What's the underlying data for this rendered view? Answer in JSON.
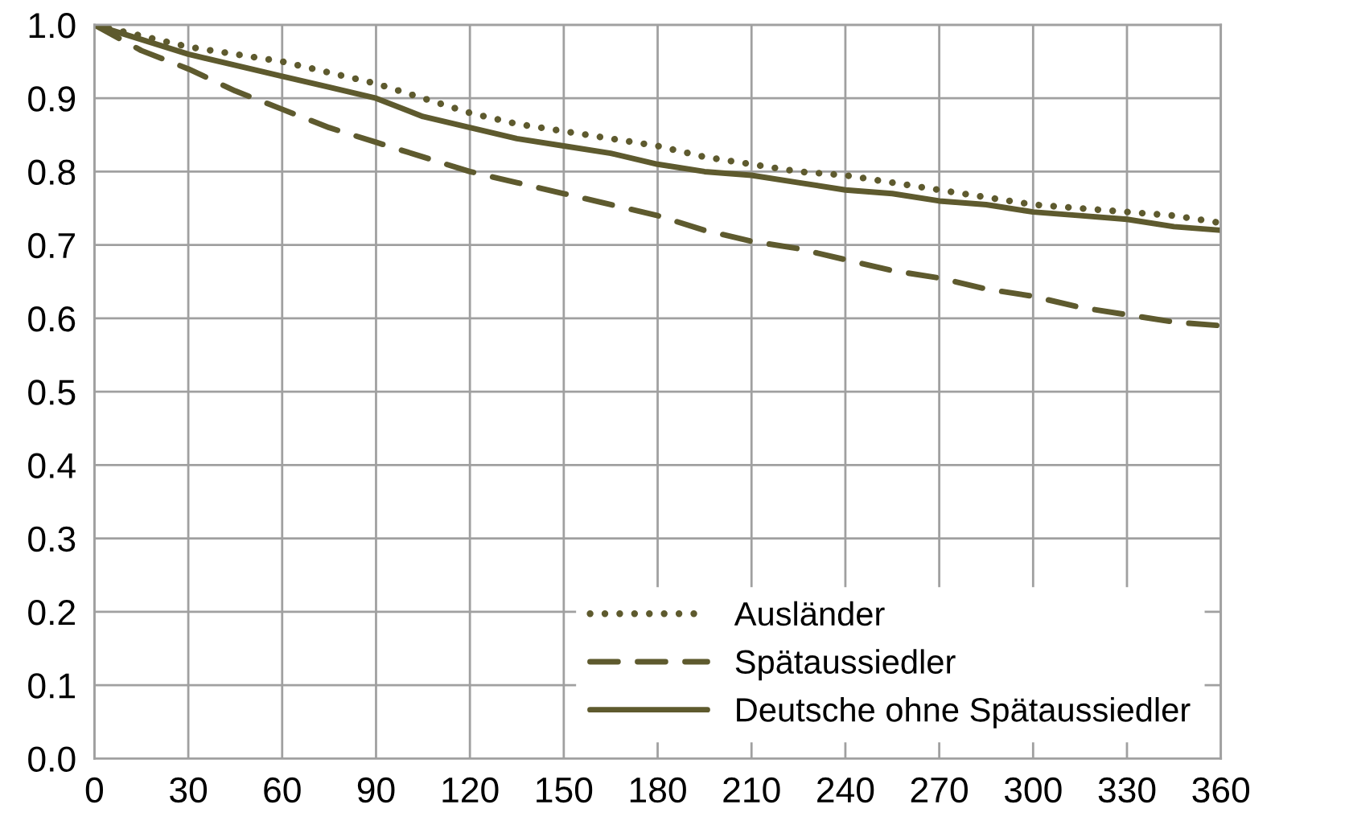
{
  "chart_data": {
    "type": "line",
    "x": [
      0,
      15,
      30,
      45,
      60,
      75,
      90,
      105,
      120,
      135,
      150,
      165,
      180,
      195,
      210,
      225,
      240,
      255,
      270,
      285,
      300,
      315,
      330,
      345,
      360
    ],
    "xlim": [
      0,
      360
    ],
    "xticks": [
      0,
      30,
      60,
      90,
      120,
      150,
      180,
      210,
      240,
      270,
      300,
      330,
      360
    ],
    "ylim": [
      0,
      1
    ],
    "yticks": [
      {
        "value": 0,
        "label": "0.0"
      },
      0.1,
      0.2,
      0.3,
      0.4,
      0.5,
      0.6,
      0.7,
      0.8,
      0.9,
      {
        "value": 1,
        "label": "1.0"
      }
    ],
    "grid": true,
    "legend": "bottom right",
    "marker": "none",
    "series": [
      {
        "name": "Ausländer",
        "color": "#5e5a2e",
        "line_style": "dotted",
        "values": [
          1.0,
          0.985,
          0.97,
          0.96,
          0.95,
          0.935,
          0.92,
          0.9,
          0.88,
          0.865,
          0.855,
          0.845,
          0.835,
          0.82,
          0.81,
          0.8,
          0.795,
          0.785,
          0.775,
          0.765,
          0.755,
          0.75,
          0.745,
          0.74,
          0.73
        ]
      },
      {
        "name": "Spätaussiedler",
        "color": "#5e5a2e",
        "line_style": "dashed",
        "values": [
          1.0,
          0.965,
          0.94,
          0.91,
          0.885,
          0.86,
          0.84,
          0.82,
          0.8,
          0.785,
          0.77,
          0.755,
          0.74,
          0.72,
          0.705,
          0.695,
          0.68,
          0.665,
          0.655,
          0.64,
          0.63,
          0.615,
          0.605,
          0.595,
          0.59
        ]
      },
      {
        "name": "Deutsche ohne Spätaussiedler",
        "color": "#5e5a2e",
        "line_style": "solid",
        "values": [
          1.0,
          0.98,
          0.96,
          0.945,
          0.93,
          0.915,
          0.9,
          0.875,
          0.86,
          0.845,
          0.835,
          0.825,
          0.81,
          0.8,
          0.795,
          0.785,
          0.775,
          0.77,
          0.76,
          0.755,
          0.745,
          0.74,
          0.735,
          0.725,
          0.72
        ]
      }
    ]
  }
}
